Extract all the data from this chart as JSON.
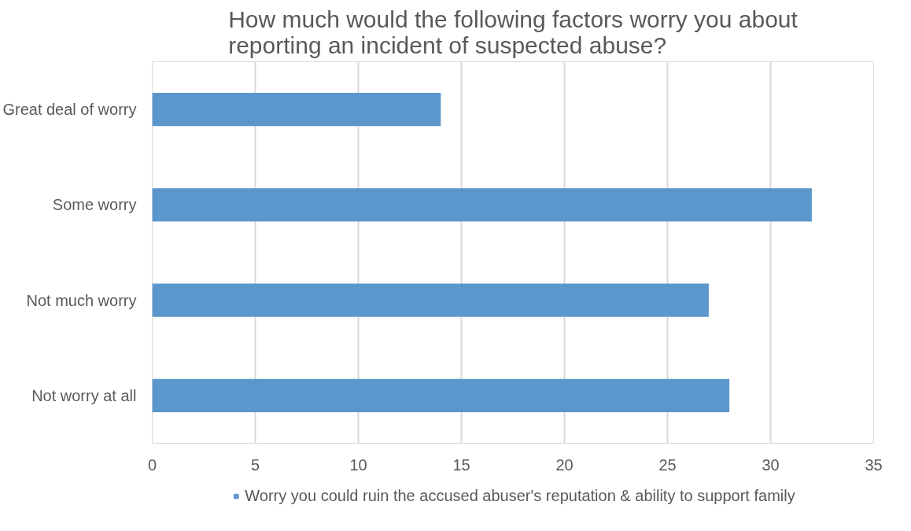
{
  "chart_data": {
    "type": "bar",
    "orientation": "horizontal",
    "title": "How much would the following factors worry you about reporting an incident of suspected abuse?",
    "categories": [
      "Great deal of worry",
      "Some worry",
      "Not much worry",
      "Not worry at all"
    ],
    "series": [
      {
        "name": "Worry you could ruin the accused abuser's reputation & ability to support family",
        "color": "#5b96cc",
        "values": [
          14,
          32,
          27,
          28
        ]
      }
    ],
    "xlim": [
      0,
      35
    ],
    "xticks": [
      0,
      5,
      10,
      15,
      20,
      25,
      30,
      35
    ],
    "grid": "x",
    "legend": "bottom"
  }
}
